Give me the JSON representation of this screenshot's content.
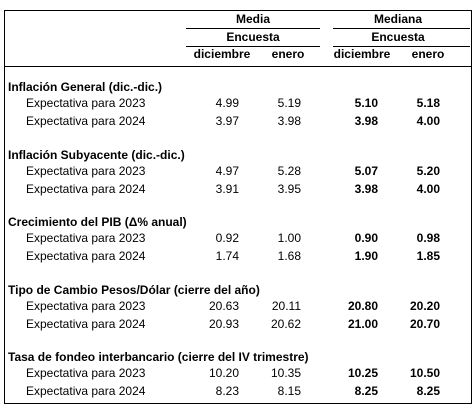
{
  "header": {
    "groups": [
      {
        "title": "Media",
        "subtitle": "Encuesta",
        "columns": [
          "diciembre",
          "enero"
        ]
      },
      {
        "title": "Mediana",
        "subtitle": "Encuesta",
        "columns": [
          "diciembre",
          "enero"
        ]
      }
    ]
  },
  "sections": [
    {
      "title": "Inflación General (dic.-dic.)",
      "rows": [
        {
          "label": "Expectativa para 2023",
          "values": [
            "4.99",
            "5.19",
            "5.10",
            "5.18"
          ]
        },
        {
          "label": "Expectativa para 2024",
          "values": [
            "3.97",
            "3.98",
            "3.98",
            "4.00"
          ]
        }
      ]
    },
    {
      "title": "Inflación Subyacente (dic.-dic.)",
      "rows": [
        {
          "label": "Expectativa para 2023",
          "values": [
            "4.97",
            "5.28",
            "5.07",
            "5.20"
          ]
        },
        {
          "label": "Expectativa para 2024",
          "values": [
            "3.91",
            "3.95",
            "3.98",
            "4.00"
          ]
        }
      ]
    },
    {
      "title": "Crecimiento del PIB (Δ% anual)",
      "rows": [
        {
          "label": "Expectativa para 2023",
          "values": [
            "0.92",
            "1.00",
            "0.90",
            "0.98"
          ]
        },
        {
          "label": "Expectativa para 2024",
          "values": [
            "1.74",
            "1.68",
            "1.90",
            "1.85"
          ]
        }
      ]
    },
    {
      "title": "Tipo de Cambio Pesos/Dólar (cierre del año)",
      "rows": [
        {
          "label": "Expectativa para 2023",
          "values": [
            "20.63",
            "20.11",
            "20.80",
            "20.20"
          ]
        },
        {
          "label": "Expectativa para 2024",
          "values": [
            "20.93",
            "20.62",
            "21.00",
            "20.70"
          ]
        }
      ]
    },
    {
      "title": "Tasa de fondeo interbancario (cierre del IV trimestre)",
      "rows": [
        {
          "label": "Expectativa para 2023",
          "values": [
            "10.20",
            "10.35",
            "10.25",
            "10.50"
          ]
        },
        {
          "label": "Expectativa para 2024",
          "values": [
            "8.23",
            "8.15",
            "8.25",
            "8.25"
          ]
        }
      ]
    }
  ]
}
